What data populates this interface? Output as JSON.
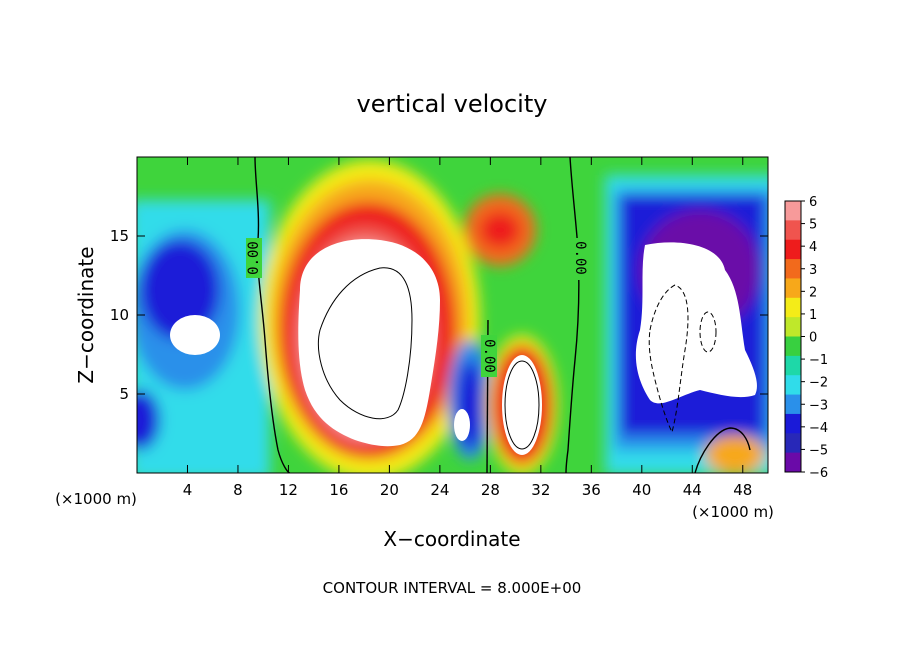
{
  "chart_data": {
    "type": "heatmap",
    "title": "vertical velocity",
    "xlabel": "X−coordinate",
    "ylabel": "Z−coordinate",
    "x_unit_label": "(×1000 m)",
    "x_unit_label_right": "(×1000 m)",
    "footer": "CONTOUR INTERVAL = 8.000E+00",
    "xlim": [
      0,
      50
    ],
    "ylim": [
      0,
      20
    ],
    "x_ticks": [
      "4",
      "8",
      "12",
      "16",
      "20",
      "24",
      "28",
      "32",
      "36",
      "40",
      "44",
      "48"
    ],
    "y_ticks": [
      "5",
      "10",
      "15"
    ],
    "colorbar": {
      "range": [
        -6,
        6
      ],
      "labels": [
        "6",
        "5",
        "4",
        "3",
        "2",
        "1",
        "0",
        "−1",
        "−2",
        "−3",
        "−4",
        "−5",
        "−6"
      ],
      "colors": [
        "#f79a9a",
        "#f0544e",
        "#ee1c1c",
        "#f26a1c",
        "#f7a81a",
        "#f4ec18",
        "#bfe82a",
        "#38d040",
        "#1ed8a8",
        "#30dcea",
        "#2a90ea",
        "#1a1ad8",
        "#2828b8",
        "#6a0aa8"
      ]
    },
    "contour_labels": [
      "0.00",
      "0.00",
      "0.00"
    ]
  },
  "colors": {
    "positive_strong": "#ee1c1c",
    "negative_strong": "#1a1ad8",
    "neutral": "#38d040"
  }
}
